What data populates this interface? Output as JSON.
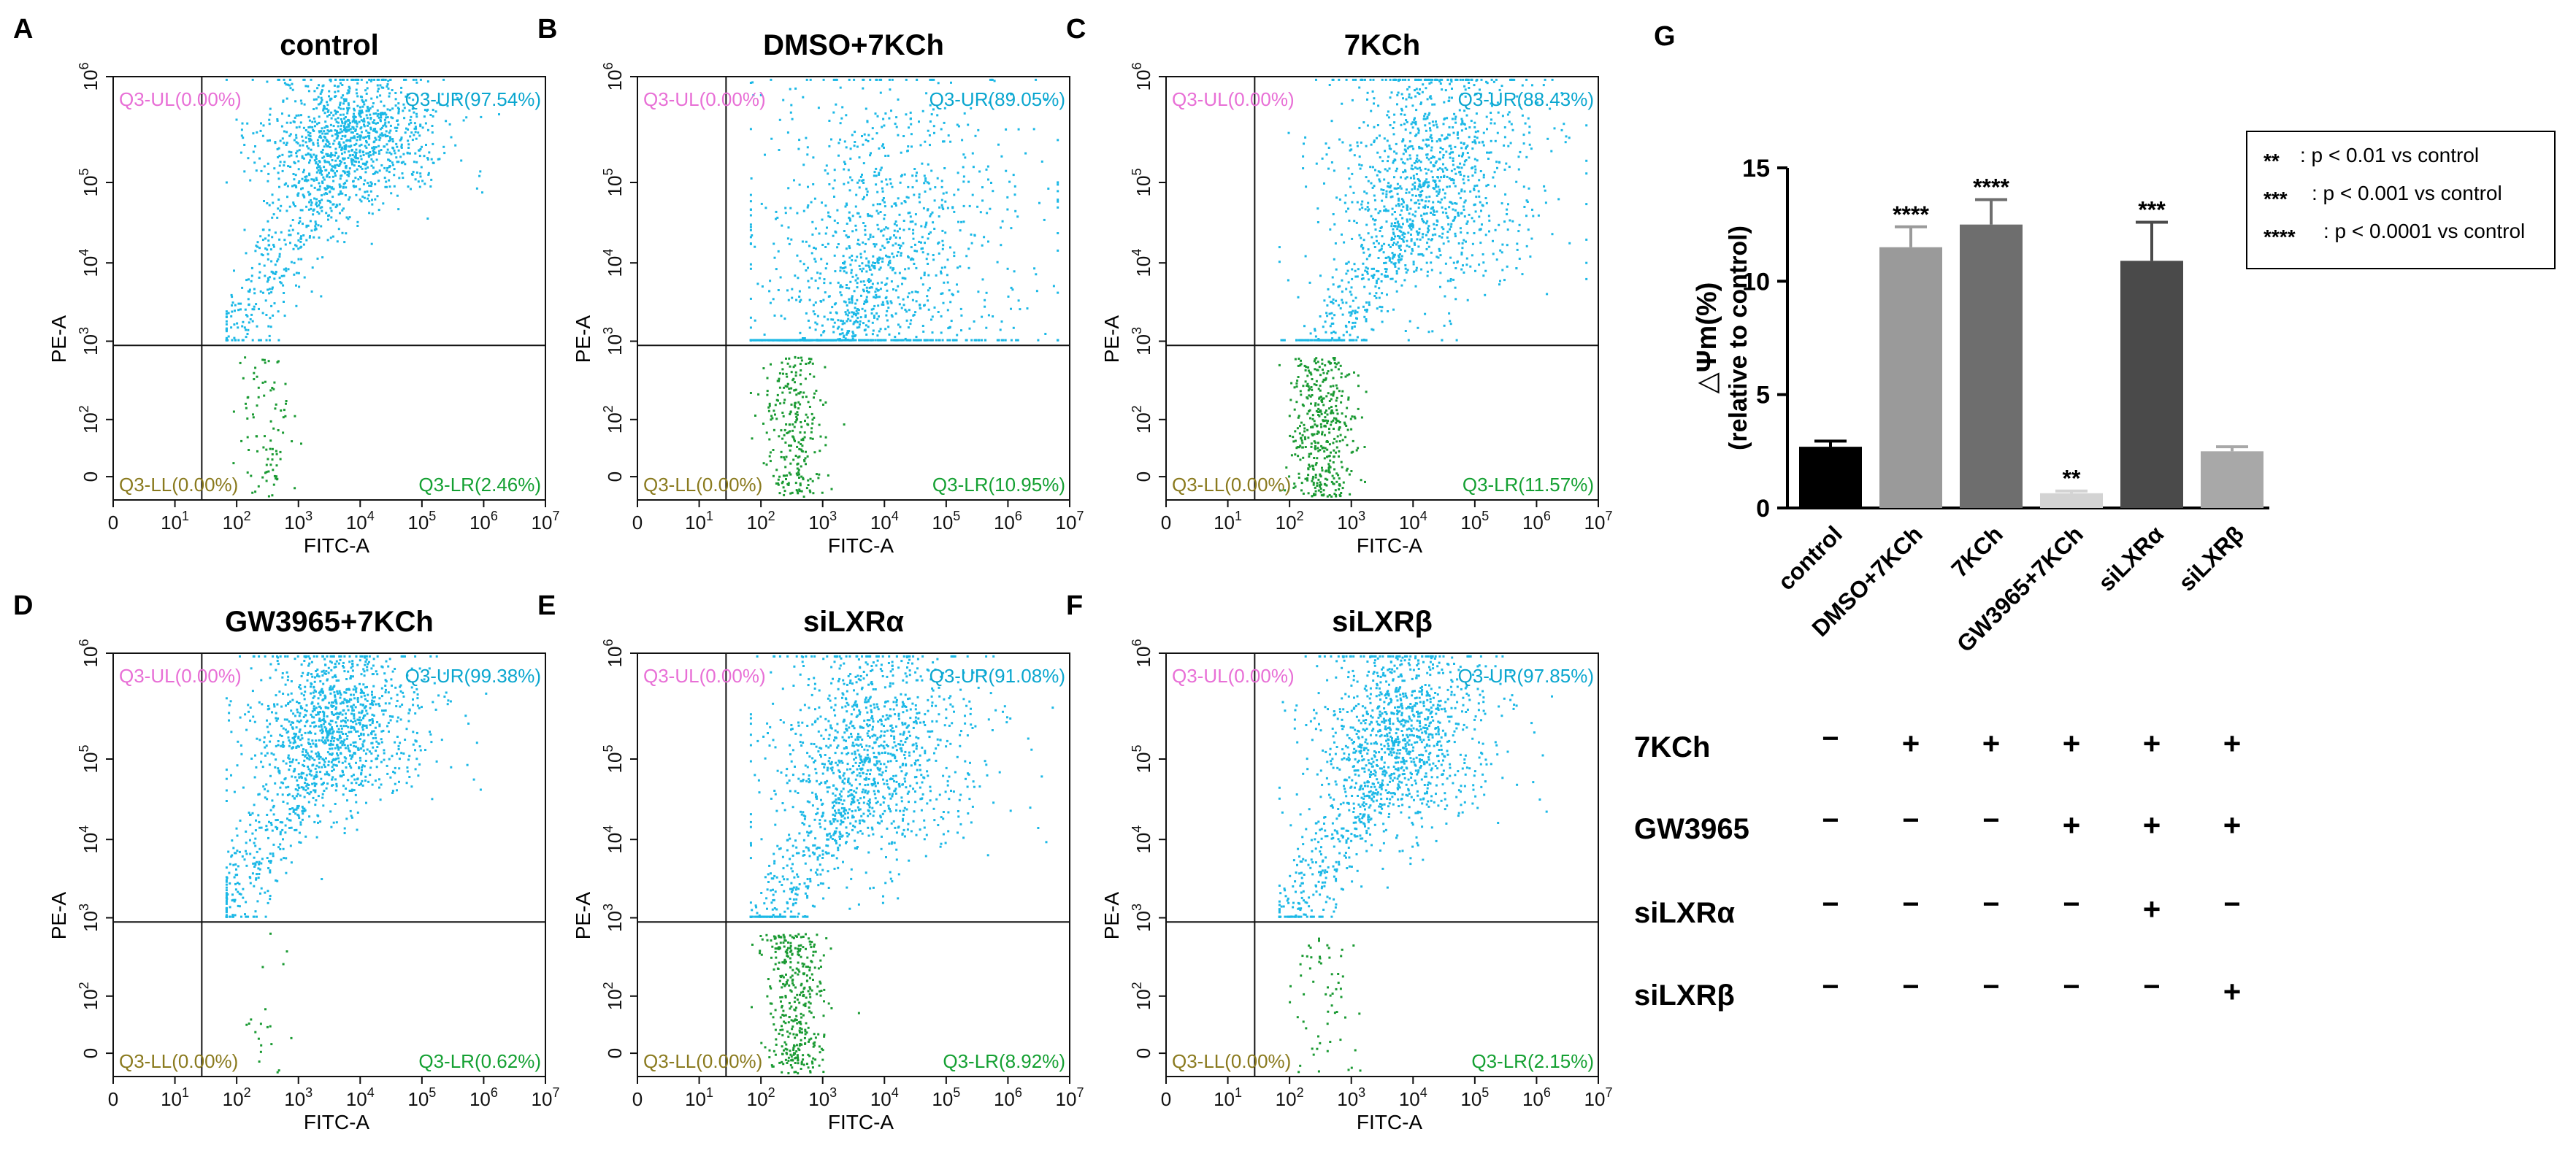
{
  "figure": {
    "panels": [
      {
        "letter": "A",
        "title": "control",
        "quadrants": {
          "UL": "Q3-UL(0.00%)",
          "UR": "Q3-UR(97.54%)",
          "LL": "Q3-LL(0.00%)",
          "LR": "Q3-LR(2.46%)"
        }
      },
      {
        "letter": "B",
        "title": "DMSO+7KCh",
        "quadrants": {
          "UL": "Q3-UL(0.00%)",
          "UR": "Q3-UR(89.05%)",
          "LL": "Q3-LL(0.00%)",
          "LR": "Q3-LR(10.95%)"
        }
      },
      {
        "letter": "C",
        "title": "7KCh",
        "quadrants": {
          "UL": "Q3-UL(0.00%)",
          "UR": "Q3-UR(88.43%)",
          "LL": "Q3-LL(0.00%)",
          "LR": "Q3-LR(11.57%)"
        }
      },
      {
        "letter": "D",
        "title": "GW3965+7KCh",
        "quadrants": {
          "UL": "Q3-UL(0.00%)",
          "UR": "Q3-UR(99.38%)",
          "LL": "Q3-LL(0.00%)",
          "LR": "Q3-LR(0.62%)"
        }
      },
      {
        "letter": "E",
        "title": "siLXRα",
        "quadrants": {
          "UL": "Q3-UL(0.00%)",
          "UR": "Q3-UR(91.08%)",
          "LL": "Q3-LL(0.00%)",
          "LR": "Q3-LR(8.92%)"
        }
      },
      {
        "letter": "F",
        "title": "siLXRβ",
        "quadrants": {
          "UL": "Q3-UL(0.00%)",
          "UR": "Q3-UR(97.85%)",
          "LL": "Q3-LL(0.00%)",
          "LR": "Q3-LR(2.15%)"
        }
      }
    ],
    "flow_axes": {
      "xlabel": "FITC-A",
      "ylabel": "PE-A",
      "x_ticks": [
        "0",
        "10^1",
        "10^2",
        "10^3",
        "10^4",
        "10^5",
        "10^6",
        "10^7"
      ],
      "y_ticks": [
        "0",
        "10^2",
        "10^3",
        "10^4",
        "10^5",
        "10^6"
      ]
    },
    "bar_panel": {
      "letter": "G",
      "legend": [
        {
          "stars": "**",
          "text": ": p < 0.01 vs control"
        },
        {
          "stars": "***",
          "text": ": p < 0.001 vs control"
        },
        {
          "stars": "****",
          "text": ": p < 0.0001 vs control"
        }
      ],
      "treatment_table": {
        "rows": [
          {
            "label": "7KCh",
            "signs": [
              "−",
              "+",
              "+",
              "+",
              "+",
              "+"
            ]
          },
          {
            "label": "GW3965",
            "signs": [
              "−",
              "−",
              "−",
              "+",
              "+",
              "+"
            ]
          },
          {
            "label": "siLXRα",
            "signs": [
              "−",
              "−",
              "−",
              "−",
              "+",
              "−"
            ]
          },
          {
            "label": "siLXRβ",
            "signs": [
              "−",
              "−",
              "−",
              "−",
              "−",
              "+"
            ]
          }
        ]
      }
    }
  },
  "chart_data": [
    {
      "type": "scatter",
      "panel": "A",
      "title": "control",
      "xlabel": "FITC-A",
      "ylabel": "PE-A",
      "x_scale": "log",
      "y_scale": "log",
      "quadrant_percent": {
        "UL": 0.0,
        "UR": 97.54,
        "LL": 0.0,
        "LR": 2.46
      }
    },
    {
      "type": "scatter",
      "panel": "B",
      "title": "DMSO+7KCh",
      "xlabel": "FITC-A",
      "ylabel": "PE-A",
      "x_scale": "log",
      "y_scale": "log",
      "quadrant_percent": {
        "UL": 0.0,
        "UR": 89.05,
        "LL": 0.0,
        "LR": 10.95
      }
    },
    {
      "type": "scatter",
      "panel": "C",
      "title": "7KCh",
      "xlabel": "FITC-A",
      "ylabel": "PE-A",
      "x_scale": "log",
      "y_scale": "log",
      "quadrant_percent": {
        "UL": 0.0,
        "UR": 88.43,
        "LL": 0.0,
        "LR": 11.57
      }
    },
    {
      "type": "scatter",
      "panel": "D",
      "title": "GW3965+7KCh",
      "xlabel": "FITC-A",
      "ylabel": "PE-A",
      "x_scale": "log",
      "y_scale": "log",
      "quadrant_percent": {
        "UL": 0.0,
        "UR": 99.38,
        "LL": 0.0,
        "LR": 0.62
      }
    },
    {
      "type": "scatter",
      "panel": "E",
      "title": "siLXRα",
      "xlabel": "FITC-A",
      "ylabel": "PE-A",
      "x_scale": "log",
      "y_scale": "log",
      "quadrant_percent": {
        "UL": 0.0,
        "UR": 91.08,
        "LL": 0.0,
        "LR": 8.92
      }
    },
    {
      "type": "scatter",
      "panel": "F",
      "title": "siLXRβ",
      "xlabel": "FITC-A",
      "ylabel": "PE-A",
      "x_scale": "log",
      "y_scale": "log",
      "quadrant_percent": {
        "UL": 0.0,
        "UR": 97.85,
        "LL": 0.0,
        "LR": 2.15
      }
    },
    {
      "type": "bar",
      "panel": "G",
      "categories": [
        "control",
        "DMSO+7KCh",
        "7KCh",
        "GW3965+7KCh",
        "siLXRα",
        "siLXRβ"
      ],
      "values": [
        2.7,
        11.5,
        12.5,
        0.65,
        10.9,
        2.5
      ],
      "errors": [
        0.25,
        0.9,
        1.1,
        0.1,
        1.7,
        0.2
      ],
      "significance": [
        "",
        "****",
        "****",
        "**",
        "***",
        ""
      ],
      "colors": [
        "#000000",
        "#9a9a9a",
        "#6e6e6e",
        "#d3d3d3",
        "#4a4a4a",
        "#a8a8a8"
      ],
      "ylabel": "△Ψm(%)",
      "ylabel2": "(relative to control)",
      "ylim": [
        0,
        15
      ],
      "yticks": [
        0,
        5,
        10,
        15
      ]
    }
  ]
}
